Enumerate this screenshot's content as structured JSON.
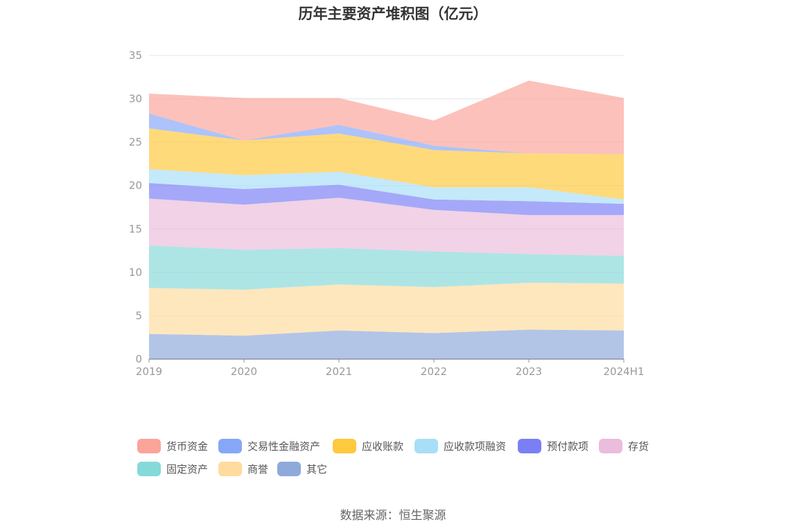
{
  "chart_data": {
    "type": "area",
    "stacked": true,
    "title": "历年主要资产堆积图（亿元）",
    "source": "数据来源：恒生聚源",
    "categories": [
      "2019",
      "2020",
      "2021",
      "2022",
      "2023",
      "2024H1"
    ],
    "ylim": [
      0,
      35
    ],
    "yticks": [
      "0",
      "5",
      "10",
      "15",
      "20",
      "25",
      "30",
      "35"
    ],
    "grid": true,
    "legend_position": "bottom",
    "series": [
      {
        "name": "其它",
        "color": "#8eaadb",
        "values": [
          2.9,
          2.7,
          3.3,
          3.0,
          3.4,
          3.3
        ]
      },
      {
        "name": "商誉",
        "color": "#ffdb9e",
        "values": [
          5.3,
          5.3,
          5.3,
          5.3,
          5.4,
          5.4
        ]
      },
      {
        "name": "固定资产",
        "color": "#86d9d9",
        "values": [
          4.9,
          4.6,
          4.2,
          4.1,
          3.3,
          3.2
        ]
      },
      {
        "name": "存货",
        "color": "#ebbcdc",
        "values": [
          5.4,
          5.2,
          5.8,
          4.8,
          4.5,
          4.7
        ]
      },
      {
        "name": "预付款项",
        "color": "#7b7ff5",
        "values": [
          1.8,
          1.8,
          1.5,
          1.2,
          1.6,
          1.3
        ]
      },
      {
        "name": "应收款项融资",
        "color": "#a8def7",
        "values": [
          1.6,
          1.6,
          1.5,
          1.4,
          1.6,
          0.5
        ]
      },
      {
        "name": "应收账款",
        "color": "#ffc93d",
        "values": [
          4.7,
          4.0,
          4.4,
          4.3,
          3.9,
          5.2
        ]
      },
      {
        "name": "交易性金融资产",
        "color": "#86a7f7",
        "values": [
          1.7,
          0.0,
          1.0,
          0.5,
          0.0,
          0.0
        ]
      },
      {
        "name": "货币资金",
        "color": "#faa49a",
        "values": [
          2.3,
          4.9,
          3.1,
          2.9,
          8.4,
          6.5
        ]
      }
    ]
  },
  "legend_order": [
    "货币资金",
    "交易性金融资产",
    "应收账款",
    "应收款项融资",
    "预付款项",
    "存货",
    "固定资产",
    "商誉",
    "其它"
  ],
  "legend_colors": [
    "#faa49a",
    "#86a7f7",
    "#ffc93d",
    "#a8def7",
    "#7b7ff5",
    "#ebbcdc",
    "#86d9d9",
    "#ffdb9e",
    "#8eaadb"
  ]
}
